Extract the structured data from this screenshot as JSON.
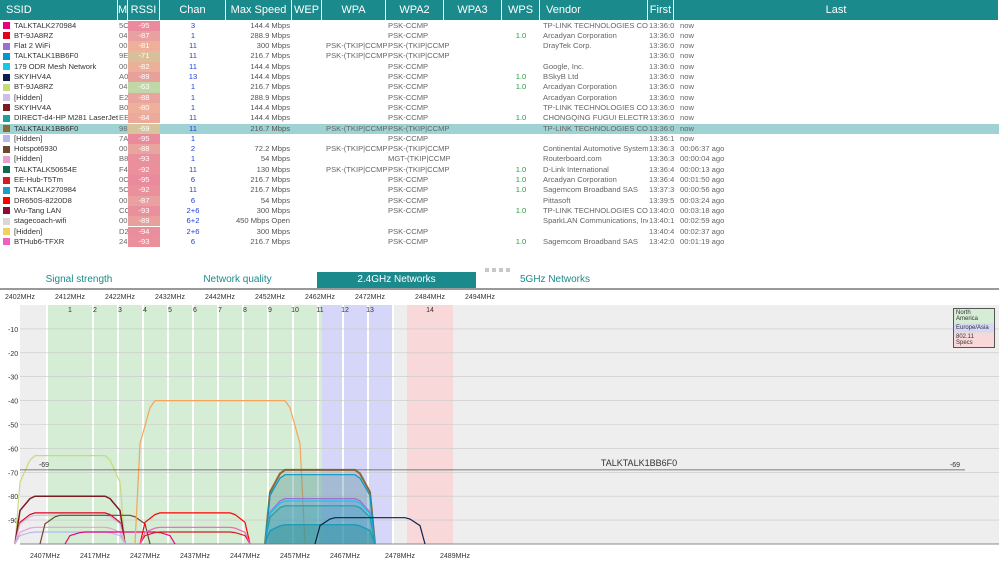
{
  "columns": [
    "SSID",
    "M",
    "RSSI",
    "Chan",
    "Max Speed",
    "WEP",
    "WPA",
    "WPA2",
    "WPA3",
    "WPS",
    "Vendor",
    "First",
    "Last"
  ],
  "rows": [
    {
      "color": "#e6007e",
      "ssid": "TALKTALK270984",
      "mac": "5C:",
      "rssi": "-95",
      "rssi_color": "#e98b9c",
      "chan": "3",
      "speed": "144.4 Mbps",
      "wpa": "",
      "wpa2": "PSK-CCMP",
      "wps": "",
      "vendor": "TP-LINK TECHNOLOGIES CO.,LTD.",
      "first": "13:36:08",
      "last": "now"
    },
    {
      "color": "#e2001a",
      "ssid": "BT-9JA8RZ",
      "mac": "04:",
      "rssi": "-87",
      "rssi_color": "#e9a0a0",
      "chan": "1",
      "speed": "288.9 Mbps",
      "wpa": "",
      "wpa2": "PSK-CCMP",
      "wps": "1.0",
      "vendor": "Arcadyan Corporation",
      "first": "13:36:08",
      "last": "now"
    },
    {
      "color": "#9b6fd4",
      "ssid": "Flat 2 WiFi",
      "mac": "00:",
      "rssi": "-81",
      "rssi_color": "#eeb09b",
      "chan": "11",
      "speed": "300 Mbps",
      "wpa": "PSK-(TKIP|CCMP)",
      "wpa2": "PSK-(TKIP|CCMP)",
      "wps": "",
      "vendor": "DrayTek Corp.",
      "first": "13:36:07",
      "last": "now"
    },
    {
      "color": "#0099cc",
      "ssid": "TALKTALK1BB6F0",
      "mac": "9E:",
      "rssi": "-71",
      "rssi_color": "#d9c09a",
      "chan": "11",
      "speed": "216.7 Mbps",
      "wpa": "PSK-(TKIP|CCMP)",
      "wpa2": "PSK-(TKIP|CCMP)",
      "wps": "",
      "vendor": "",
      "first": "13:36:07",
      "last": "now"
    },
    {
      "color": "#19c6e6",
      "ssid": "179 ODR Mesh Network",
      "mac": "00:",
      "rssi": "-82",
      "rssi_color": "#ecb098",
      "chan": "11",
      "speed": "144.4 Mbps",
      "wpa": "",
      "wpa2": "PSK-CCMP",
      "wps": "",
      "vendor": "Google, Inc.",
      "first": "13:36:07",
      "last": "now"
    },
    {
      "color": "#0b1f4f",
      "ssid": "SKYIHV4A",
      "mac": "A0:",
      "rssi": "-89",
      "rssi_color": "#e8a09c",
      "chan": "13",
      "speed": "144.4 Mbps",
      "wpa": "",
      "wpa2": "PSK-CCMP",
      "wps": "1.0",
      "vendor": "BSkyB Ltd",
      "first": "13:36:07",
      "last": "now"
    },
    {
      "color": "#c7db7c",
      "ssid": "BT-9JA8RZ",
      "mac": "04:",
      "rssi": "-63",
      "rssi_color": "#bfd8a6",
      "chan": "1",
      "speed": "216.7 Mbps",
      "wpa": "",
      "wpa2": "PSK-CCMP",
      "wps": "1.0",
      "vendor": "Arcadyan Corporation",
      "first": "13:36:07",
      "last": "now"
    },
    {
      "color": "#cdbde8",
      "ssid": "[Hidden]",
      "mac": "E2:",
      "rssi": "-88",
      "rssi_color": "#e9a4a0",
      "chan": "1",
      "speed": "288.9 Mbps",
      "wpa": "",
      "wpa2": "PSK-CCMP",
      "wps": "",
      "vendor": "Arcadyan Corporation",
      "first": "13:36:09",
      "last": "now"
    },
    {
      "color": "#7a1a22",
      "ssid": "SKYIHV4A",
      "mac": "B0:",
      "rssi": "-80",
      "rssi_color": "#eeb09b",
      "chan": "1",
      "speed": "144.4 Mbps",
      "wpa": "",
      "wpa2": "PSK-CCMP",
      "wps": "",
      "vendor": "TP-LINK TECHNOLOGIES CO.,LTD.",
      "first": "13:36:07",
      "last": "now"
    },
    {
      "color": "#1ea0a0",
      "ssid": "DIRECT-d4-HP M281 LaserJet",
      "mac": "EE:",
      "rssi": "-84",
      "rssi_color": "#ecaa9c",
      "chan": "11",
      "speed": "144.4 Mbps",
      "wpa": "",
      "wpa2": "PSK-CCMP",
      "wps": "1.0",
      "vendor": "CHONGQING FUGUI ELECTRONICS CO.,LTD.",
      "first": "13:36:07",
      "last": "now"
    },
    {
      "color": "#8a6a3a",
      "ssid": "TALKTALK1BB6F0",
      "mac": "98:",
      "rssi": "-69",
      "rssi_color": "#d6c49c",
      "chan": "11",
      "speed": "216.7 Mbps",
      "wpa": "PSK-(TKIP|CCMP)",
      "wpa2": "PSK-(TKIP|CCMP)",
      "wps": "",
      "vendor": "TP-LINK TECHNOLOGIES CO.,LTD.",
      "first": "13:36:07",
      "last": "now",
      "selected": true
    },
    {
      "color": "#b8b8f0",
      "ssid": "[Hidden]",
      "mac": "7A:",
      "rssi": "-95",
      "rssi_color": "#e98b9c",
      "chan": "1",
      "speed": "",
      "wpa": "",
      "wpa2": "PSK-CCMP",
      "wps": "",
      "vendor": "",
      "first": "13:36:11",
      "last": "now"
    },
    {
      "color": "#6b4a2a",
      "ssid": "Hotspot6930",
      "mac": "00:",
      "rssi": "-88",
      "rssi_color": "#e9a4a0",
      "chan": "2",
      "speed": "72.2 Mbps",
      "wpa": "PSK-(TKIP|CCMP)",
      "wpa2": "PSK-(TKIP|CCMP)",
      "wps": "",
      "vendor": "Continental Automotive Systems",
      "first": "13:36:34",
      "last": "00:06:37 ago"
    },
    {
      "color": "#e8a0d0",
      "ssid": "[Hidden]",
      "mac": "B8:",
      "rssi": "-93",
      "rssi_color": "#e9909c",
      "chan": "1",
      "speed": "54 Mbps",
      "wpa": "",
      "wpa2": "MGT-(TKIP|CCMP)",
      "wps": "",
      "vendor": "Routerboard.com",
      "first": "13:36:38",
      "last": "00:00:04 ago"
    },
    {
      "color": "#0e6b4b",
      "ssid": "TALKTALK50654E",
      "mac": "F4:",
      "rssi": "-92",
      "rssi_color": "#e9909c",
      "chan": "11",
      "speed": "130 Mbps",
      "wpa": "PSK-(TKIP|CCMP)",
      "wpa2": "PSK-(TKIP|CCMP)",
      "wps": "1.0",
      "vendor": "D-Link International",
      "first": "13:36:41",
      "last": "00:00:13 ago"
    },
    {
      "color": "#d21e1e",
      "ssid": "EE-Hub-T5Tm",
      "mac": "0C:",
      "rssi": "-95",
      "rssi_color": "#e98b9c",
      "chan": "6",
      "speed": "216.7 Mbps",
      "wpa": "",
      "wpa2": "PSK-CCMP",
      "wps": "1.0",
      "vendor": "Arcadyan Corporation",
      "first": "13:36:40",
      "last": "00:01:50 ago"
    },
    {
      "color": "#1aa0c8",
      "ssid": "TALKTALK270984",
      "mac": "5C:",
      "rssi": "-92",
      "rssi_color": "#e9909c",
      "chan": "11",
      "speed": "216.7 Mbps",
      "wpa": "",
      "wpa2": "PSK-CCMP",
      "wps": "1.0",
      "vendor": "Sagemcom Broadband SAS",
      "first": "13:37:34",
      "last": "00:00:56 ago"
    },
    {
      "color": "#ff0000",
      "ssid": "DR650S-8220D8",
      "mac": "00:",
      "rssi": "-87",
      "rssi_color": "#e9a0a0",
      "chan": "6",
      "speed": "54 Mbps",
      "wpa": "",
      "wpa2": "PSK-CCMP",
      "wps": "",
      "vendor": "Pittasoft",
      "first": "13:39:57",
      "last": "00:03:24 ago"
    },
    {
      "color": "#8e0a3a",
      "ssid": "Wu-Tang LAN",
      "mac": "CC:",
      "rssi": "-93",
      "rssi_color": "#e9909c",
      "chan": "2+6",
      "speed": "300 Mbps",
      "wpa": "",
      "wpa2": "PSK-CCMP",
      "wps": "1.0",
      "vendor": "TP-LINK TECHNOLOGIES CO.,LTD.",
      "first": "13:40:07",
      "last": "00:03:18 ago"
    },
    {
      "color": "#d8d8d8",
      "ssid": "stagecoach-wifi",
      "mac": "00:",
      "rssi": "-89",
      "rssi_color": "#e8a09c",
      "chan": "6+2",
      "speed": "450 Mbps Open",
      "wpa": "",
      "wpa2": "",
      "wps": "",
      "vendor": "SparkLAN Communications, Inc.",
      "first": "13:40:17",
      "last": "00:02:59 ago"
    },
    {
      "color": "#f0d060",
      "ssid": "[Hidden]",
      "mac": "D2:",
      "rssi": "-94",
      "rssi_color": "#e98e9c",
      "chan": "2+6",
      "speed": "300 Mbps",
      "wpa": "",
      "wpa2": "PSK-CCMP",
      "wps": "",
      "vendor": "",
      "first": "13:40:47",
      "last": "00:02:37 ago"
    },
    {
      "color": "#f060c0",
      "ssid": "BTHub6-TFXR",
      "mac": "24:",
      "rssi": "-93",
      "rssi_color": "#e9909c",
      "chan": "6",
      "speed": "216.7 Mbps",
      "wpa": "",
      "wpa2": "PSK-CCMP",
      "wps": "1.0",
      "vendor": "Sagemcom Broadband SAS",
      "first": "13:42:05",
      "last": "00:01:19 ago"
    }
  ],
  "tabs": [
    "Signal strength",
    "Network quality",
    "2.4GHz Networks",
    "5GHz Networks"
  ],
  "active_tab": 2,
  "graph": {
    "top_freqs": [
      "2402MHz",
      "2412MHz",
      "2422MHz",
      "2432MHz",
      "2442MHz",
      "2452MHz",
      "2462MHz",
      "2472MHz",
      "2484MHz",
      "2494MHz"
    ],
    "bottom_freqs": [
      "2407MHz",
      "2417MHz",
      "2427MHz",
      "2437MHz",
      "2447MHz",
      "2457MHz",
      "2467MHz",
      "2478MHz",
      "2489MHz"
    ],
    "channels": [
      "1",
      "2",
      "3",
      "4",
      "5",
      "6",
      "7",
      "8",
      "9",
      "10",
      "11",
      "12",
      "13",
      "14"
    ],
    "y_ticks": [
      "-10",
      "-20",
      "-30",
      "-40",
      "-50",
      "-60",
      "-70",
      "-80",
      "-90"
    ],
    "marker_value": "-69",
    "marker_label": "TALKTALK1BB6F0",
    "legend": [
      "North America",
      "Europe/Asia",
      "802.11 Specs"
    ],
    "band_colors": {
      "na": "#d5ecd5",
      "eu": "#d6d6f8",
      "spec": "#f8d8d8",
      "gap": "#eeeeee"
    },
    "curves": [
      {
        "ch": 1,
        "level": -63,
        "color": "#c7db7c",
        "fill": false,
        "w": 1.2
      },
      {
        "ch": 1,
        "level": -80,
        "color": "#7a1a22",
        "fill": false,
        "w": 1.5
      },
      {
        "ch": 1,
        "level": -87,
        "color": "#e2001a",
        "fill": false,
        "w": 1.2
      },
      {
        "ch": 1,
        "level": -88,
        "color": "#cdbde8",
        "fill": false,
        "w": 1.2
      },
      {
        "ch": 1,
        "level": -93,
        "color": "#e8a0d0",
        "fill": false,
        "w": 1.2
      },
      {
        "ch": 1,
        "level": -95,
        "color": "#b8b8f0",
        "fill": false,
        "w": 1.2
      },
      {
        "ch": 2,
        "level": -88,
        "color": "#6b4a2a",
        "fill": false,
        "w": 1.2
      },
      {
        "ch": 3,
        "level": -95,
        "color": "#e6007e",
        "fill": false,
        "w": 1.2
      },
      {
        "ch": 6,
        "level": -87,
        "color": "#ff0000",
        "fill": false,
        "w": 1.2
      },
      {
        "ch": 6,
        "level": -95,
        "color": "#d21e1e",
        "fill": false,
        "w": 1.2
      },
      {
        "ch": 6,
        "level": -93,
        "color": "#f060c0",
        "fill": false,
        "w": 1.2
      },
      {
        "ch": 7,
        "level": -40,
        "color": "#f5a55a",
        "fill": false,
        "w": 1.2,
        "wide": true
      },
      {
        "ch": 11,
        "level": -69,
        "color": "#8a6a3a",
        "fill": true,
        "w": 2
      },
      {
        "ch": 11,
        "level": -71,
        "color": "#0099cc",
        "fill": true,
        "w": 1.2
      },
      {
        "ch": 11,
        "level": -81,
        "color": "#9b6fd4",
        "fill": true,
        "w": 1.2
      },
      {
        "ch": 11,
        "level": -82,
        "color": "#19c6e6",
        "fill": true,
        "w": 1.2
      },
      {
        "ch": 11,
        "level": -84,
        "color": "#1ea0a0",
        "fill": true,
        "w": 1.2
      },
      {
        "ch": 11,
        "level": -92,
        "color": "#0e6b4b",
        "fill": true,
        "w": 1.2
      },
      {
        "ch": 11,
        "level": -92,
        "color": "#1aa0c8",
        "fill": true,
        "w": 1.2
      },
      {
        "ch": 13,
        "level": -89,
        "color": "#0b1f4f",
        "fill": false,
        "w": 1.2
      }
    ]
  }
}
